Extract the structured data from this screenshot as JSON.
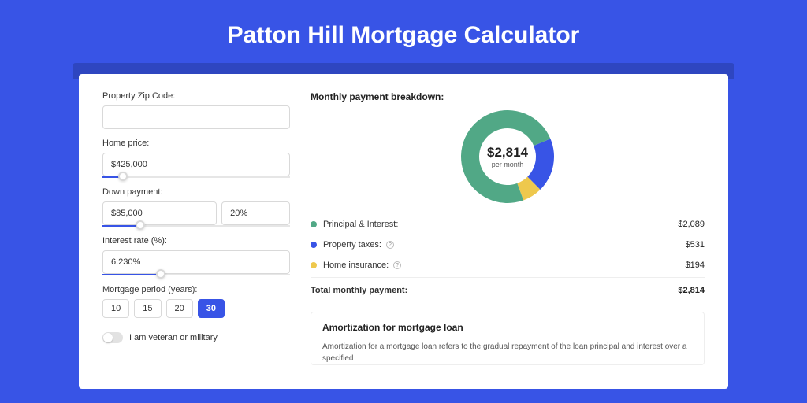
{
  "title": "Patton Hill Mortgage Calculator",
  "colors": {
    "bg": "#3854e6",
    "shadow": "#2e46c0",
    "principal": "#51a886",
    "taxes": "#3854e6",
    "insurance": "#eec84d"
  },
  "form": {
    "zip_label": "Property Zip Code:",
    "zip_value": "",
    "home_price_label": "Home price:",
    "home_price_value": "$425,000",
    "home_price_slider_pct": 11,
    "down_payment_label": "Down payment:",
    "down_payment_value": "$85,000",
    "down_payment_pct": "20%",
    "down_payment_slider_pct": 20,
    "interest_label": "Interest rate (%):",
    "interest_value": "6.230%",
    "interest_slider_pct": 31,
    "period_label": "Mortgage period (years):",
    "periods": [
      {
        "label": "10",
        "active": false
      },
      {
        "label": "15",
        "active": false
      },
      {
        "label": "20",
        "active": false
      },
      {
        "label": "30",
        "active": true
      }
    ],
    "veteran_label": "I am veteran or military",
    "veteran_on": false
  },
  "breakdown": {
    "title": "Monthly payment breakdown:",
    "total_amount": "$2,814",
    "total_sub": "per month",
    "donut": {
      "size": 118,
      "inner": 36,
      "slices": [
        {
          "key": "principal",
          "pct": 74.24,
          "color": "#51a886"
        },
        {
          "key": "taxes",
          "pct": 18.87,
          "color": "#3854e6"
        },
        {
          "key": "insurance",
          "pct": 6.89,
          "color": "#eec84d"
        }
      ]
    },
    "rows": [
      {
        "label": "Principal & Interest:",
        "value": "$2,089",
        "color": "#51a886",
        "info": false
      },
      {
        "label": "Property taxes:",
        "value": "$531",
        "color": "#3854e6",
        "info": true
      },
      {
        "label": "Home insurance:",
        "value": "$194",
        "color": "#eec84d",
        "info": true
      }
    ],
    "total_row": {
      "label": "Total monthly payment:",
      "value": "$2,814"
    }
  },
  "amortization": {
    "title": "Amortization for mortgage loan",
    "text": "Amortization for a mortgage loan refers to the gradual repayment of the loan principal and interest over a specified"
  }
}
